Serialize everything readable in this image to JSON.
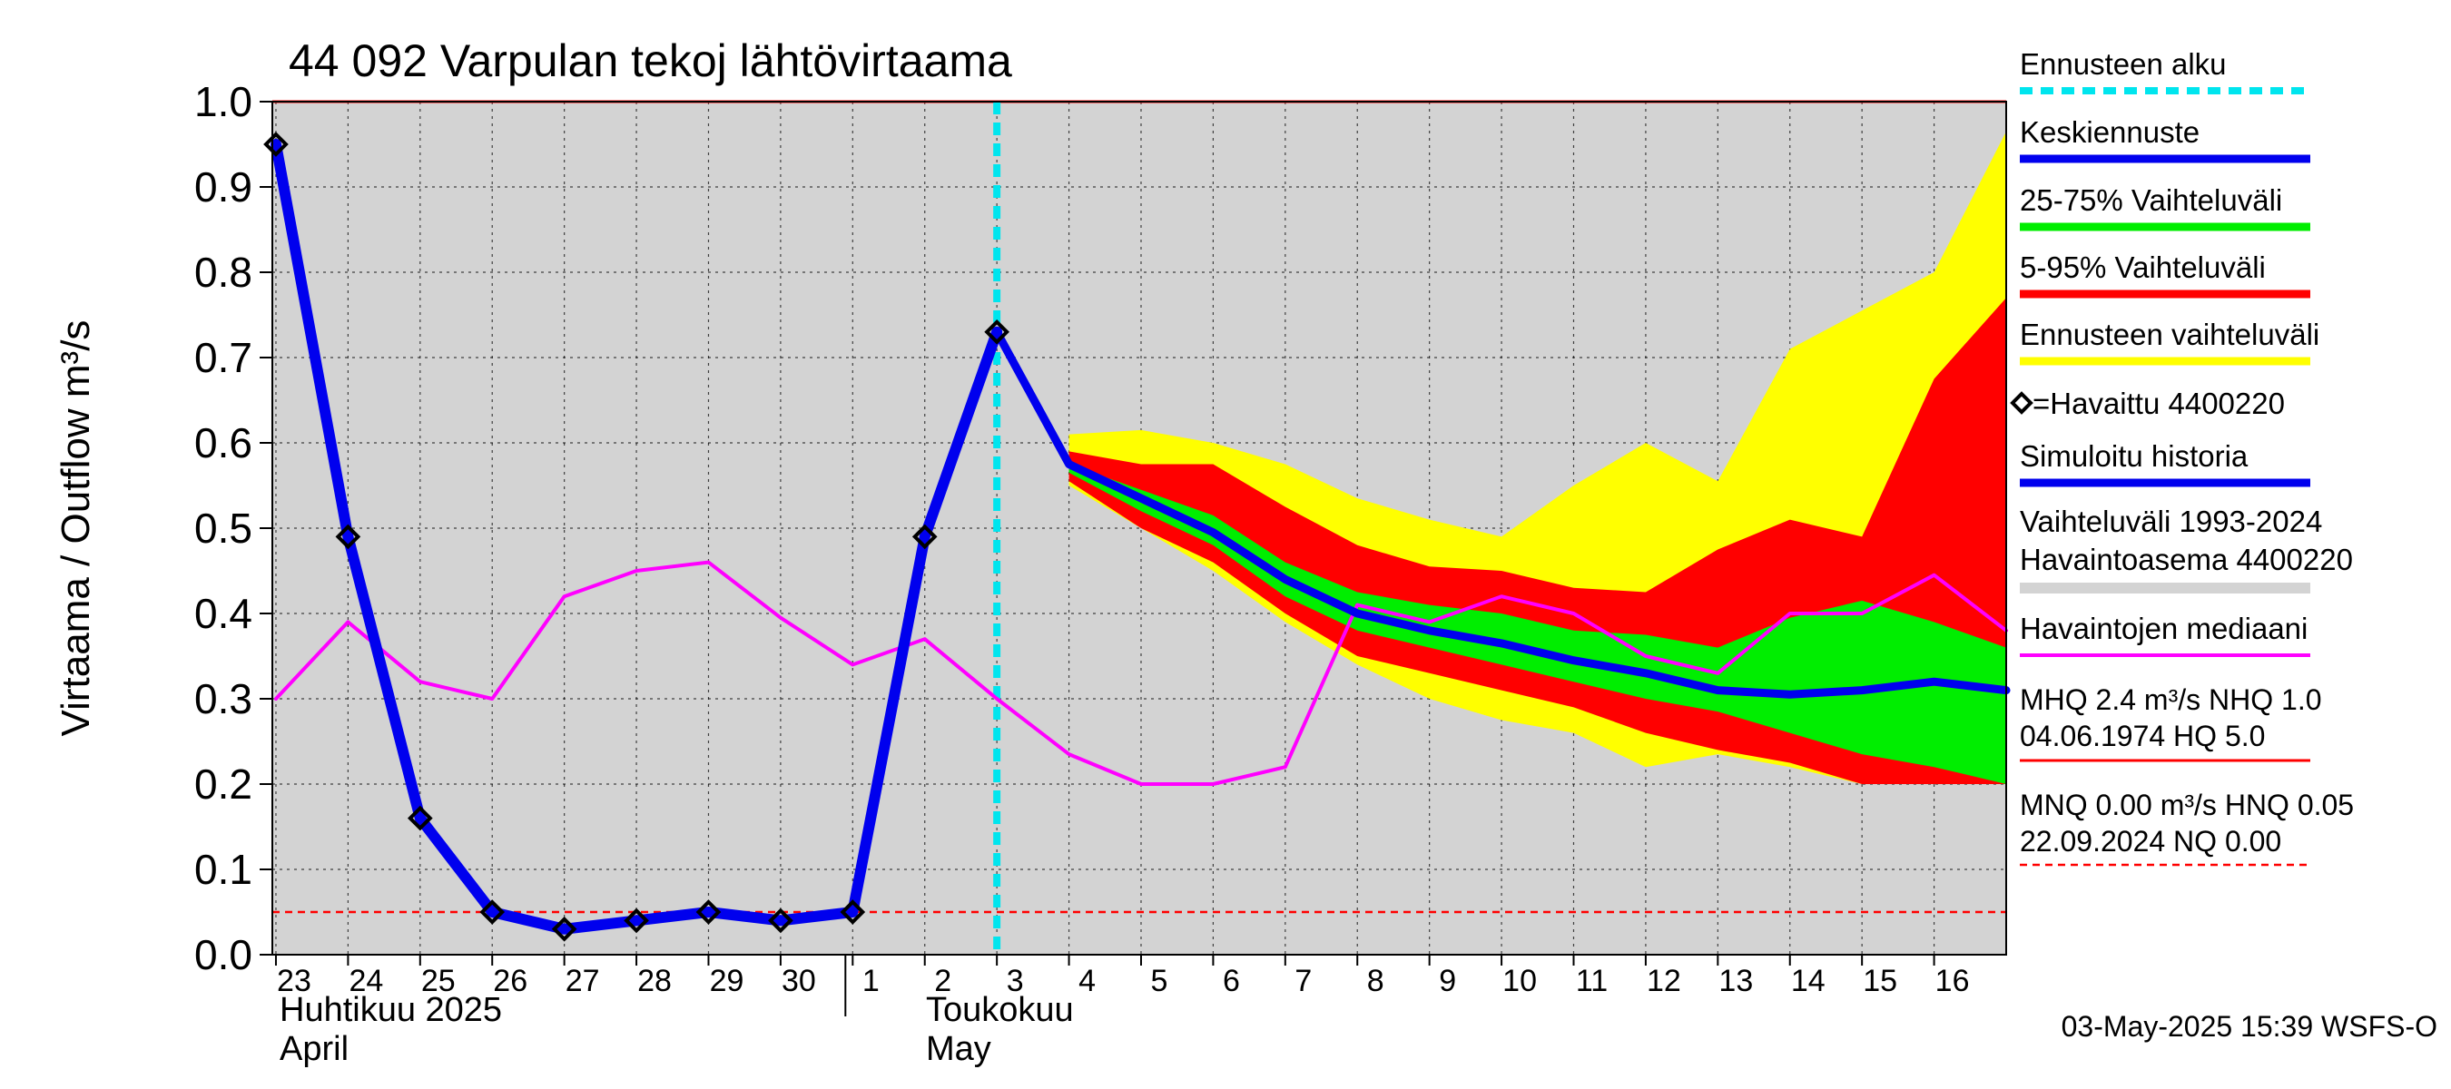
{
  "chart_data": {
    "type": "area",
    "title": "44 092 Varpulan tekoj lähtövirtaama",
    "ylabel": "Virtaama / Outflow    m³/s",
    "ylim": [
      0.0,
      1.0
    ],
    "yticks": [
      "0.0",
      "0.1",
      "0.2",
      "0.3",
      "0.4",
      "0.5",
      "0.6",
      "0.7",
      "0.8",
      "0.9",
      "1.0"
    ],
    "x_range": [
      23,
      47
    ],
    "x_tick_labels": [
      "23",
      "24",
      "25",
      "26",
      "27",
      "28",
      "29",
      "30",
      "1",
      "2",
      "3",
      "4",
      "5",
      "6",
      "7",
      "8",
      "9",
      "10",
      "11",
      "12",
      "13",
      "14",
      "15",
      "16"
    ],
    "month_labels": {
      "april_fi": "Huhtikuu  2025",
      "april_en": "April",
      "may_fi": "Toukokuu",
      "may_en": "May"
    },
    "forecast_start_x": 33,
    "hq_line": 1.0,
    "nq_line": 0.05,
    "series": [
      {
        "name": "Ennusteen vaihteluväli",
        "color": "#ffff00",
        "x": [
          34,
          35,
          36,
          37,
          38,
          39,
          40,
          41,
          42,
          43,
          44,
          45,
          46,
          47
        ],
        "upper": [
          0.61,
          0.615,
          0.6,
          0.575,
          0.535,
          0.51,
          0.49,
          0.55,
          0.6,
          0.555,
          0.71,
          0.755,
          0.8,
          0.965
        ],
        "lower": [
          0.55,
          0.5,
          0.45,
          0.39,
          0.34,
          0.3,
          0.275,
          0.26,
          0.22,
          0.235,
          0.22,
          0.2,
          0.2,
          0.2
        ]
      },
      {
        "name": "5-95% Vaihteluväli",
        "color": "#ff0000",
        "x": [
          34,
          35,
          36,
          37,
          38,
          39,
          40,
          41,
          42,
          43,
          44,
          45,
          46,
          47
        ],
        "upper": [
          0.59,
          0.575,
          0.575,
          0.525,
          0.48,
          0.455,
          0.45,
          0.43,
          0.425,
          0.475,
          0.51,
          0.49,
          0.675,
          0.77
        ],
        "lower": [
          0.555,
          0.5,
          0.46,
          0.4,
          0.35,
          0.33,
          0.31,
          0.29,
          0.26,
          0.24,
          0.225,
          0.2,
          0.2,
          0.2
        ]
      },
      {
        "name": "25-75% Vaihteluväli",
        "color": "#00ee00",
        "x": [
          34,
          35,
          36,
          37,
          38,
          39,
          40,
          41,
          42,
          43,
          44,
          45,
          46,
          47
        ],
        "upper": [
          0.575,
          0.545,
          0.515,
          0.46,
          0.425,
          0.41,
          0.4,
          0.38,
          0.375,
          0.36,
          0.395,
          0.415,
          0.39,
          0.36
        ],
        "lower": [
          0.565,
          0.52,
          0.48,
          0.42,
          0.38,
          0.36,
          0.34,
          0.32,
          0.3,
          0.285,
          0.26,
          0.235,
          0.22,
          0.2
        ]
      },
      {
        "name": "Havaintojen mediaani",
        "color": "#ff00ff",
        "x": [
          23,
          24,
          25,
          26,
          27,
          28,
          29,
          30,
          31,
          32,
          33,
          34,
          35,
          36,
          37,
          38,
          39,
          40,
          41,
          42,
          43,
          44,
          45,
          46,
          47
        ],
        "values": [
          0.3,
          0.39,
          0.32,
          0.3,
          0.42,
          0.45,
          0.46,
          0.395,
          0.34,
          0.37,
          0.3,
          0.235,
          0.2,
          0.2,
          0.22,
          0.41,
          0.39,
          0.42,
          0.4,
          0.35,
          0.33,
          0.4,
          0.4,
          0.445,
          0.38
        ]
      },
      {
        "name": "Simuloitu historia",
        "color": "#0000ee",
        "x": [
          23,
          24,
          25,
          26,
          27,
          28,
          29,
          30,
          31,
          32,
          33
        ],
        "values": [
          0.95,
          0.49,
          0.16,
          0.05,
          0.03,
          0.04,
          0.05,
          0.04,
          0.05,
          0.49,
          0.73
        ]
      },
      {
        "name": "Keskiennuste",
        "color": "#0000ee",
        "x": [
          33,
          34,
          35,
          36,
          37,
          38,
          39,
          40,
          41,
          42,
          43,
          44,
          45,
          46,
          47
        ],
        "values": [
          0.73,
          0.575,
          0.535,
          0.495,
          0.44,
          0.4,
          0.38,
          0.365,
          0.345,
          0.33,
          0.31,
          0.305,
          0.31,
          0.32,
          0.31
        ]
      },
      {
        "name": "=Havaittu 4400220",
        "marker": "diamond",
        "x": [
          23,
          24,
          25,
          26,
          27,
          28,
          29,
          30,
          31,
          32,
          33
        ],
        "values": [
          0.95,
          0.49,
          0.16,
          0.05,
          0.03,
          0.04,
          0.05,
          0.04,
          0.05,
          0.49,
          0.73
        ]
      }
    ],
    "legend": {
      "placement": "right",
      "items": [
        {
          "label": "Ennusteen alku",
          "color": "#00e5ee",
          "style": "dashed"
        },
        {
          "label": "Keskiennuste",
          "color": "#0000ee",
          "style": "thick"
        },
        {
          "label": "25-75% Vaihteluväli",
          "color": "#00ee00",
          "style": "thick"
        },
        {
          "label": "5-95% Vaihteluväli",
          "color": "#ff0000",
          "style": "thick"
        },
        {
          "label": "Ennusteen vaihteluväli",
          "color": "#ffff00",
          "style": "thick"
        },
        {
          "label": "=Havaittu 4400220",
          "color": "#000000",
          "style": "marker"
        },
        {
          "label": "Simuloitu historia",
          "color": "#0000ee",
          "style": "thick"
        },
        {
          "label": "Vaihteluväli 1993-2024",
          "color": "#d3d3d3",
          "style": "none"
        },
        {
          "label": " Havaintoasema 4400220",
          "color": "#d3d3d3",
          "style": "thick"
        },
        {
          "label": "Havaintojen mediaani",
          "color": "#ff00ff",
          "style": "thin"
        }
      ],
      "stats": {
        "hq_line1": "MHQ  2.4 m³/s NHQ  1.0",
        "hq_line2": "04.06.1974 HQ  5.0",
        "nq_line1": "MNQ 0.00 m³/s HNQ 0.05",
        "nq_line2": "22.09.2024 NQ 0.00"
      }
    },
    "footer": "03-May-2025 15:39 WSFS-O",
    "colors": {
      "plot_bg": "#d3d3d3",
      "grid": "#000000",
      "forecast_start": "#00e5ee",
      "hq": "#ff0000",
      "nq": "#ff0000"
    }
  }
}
